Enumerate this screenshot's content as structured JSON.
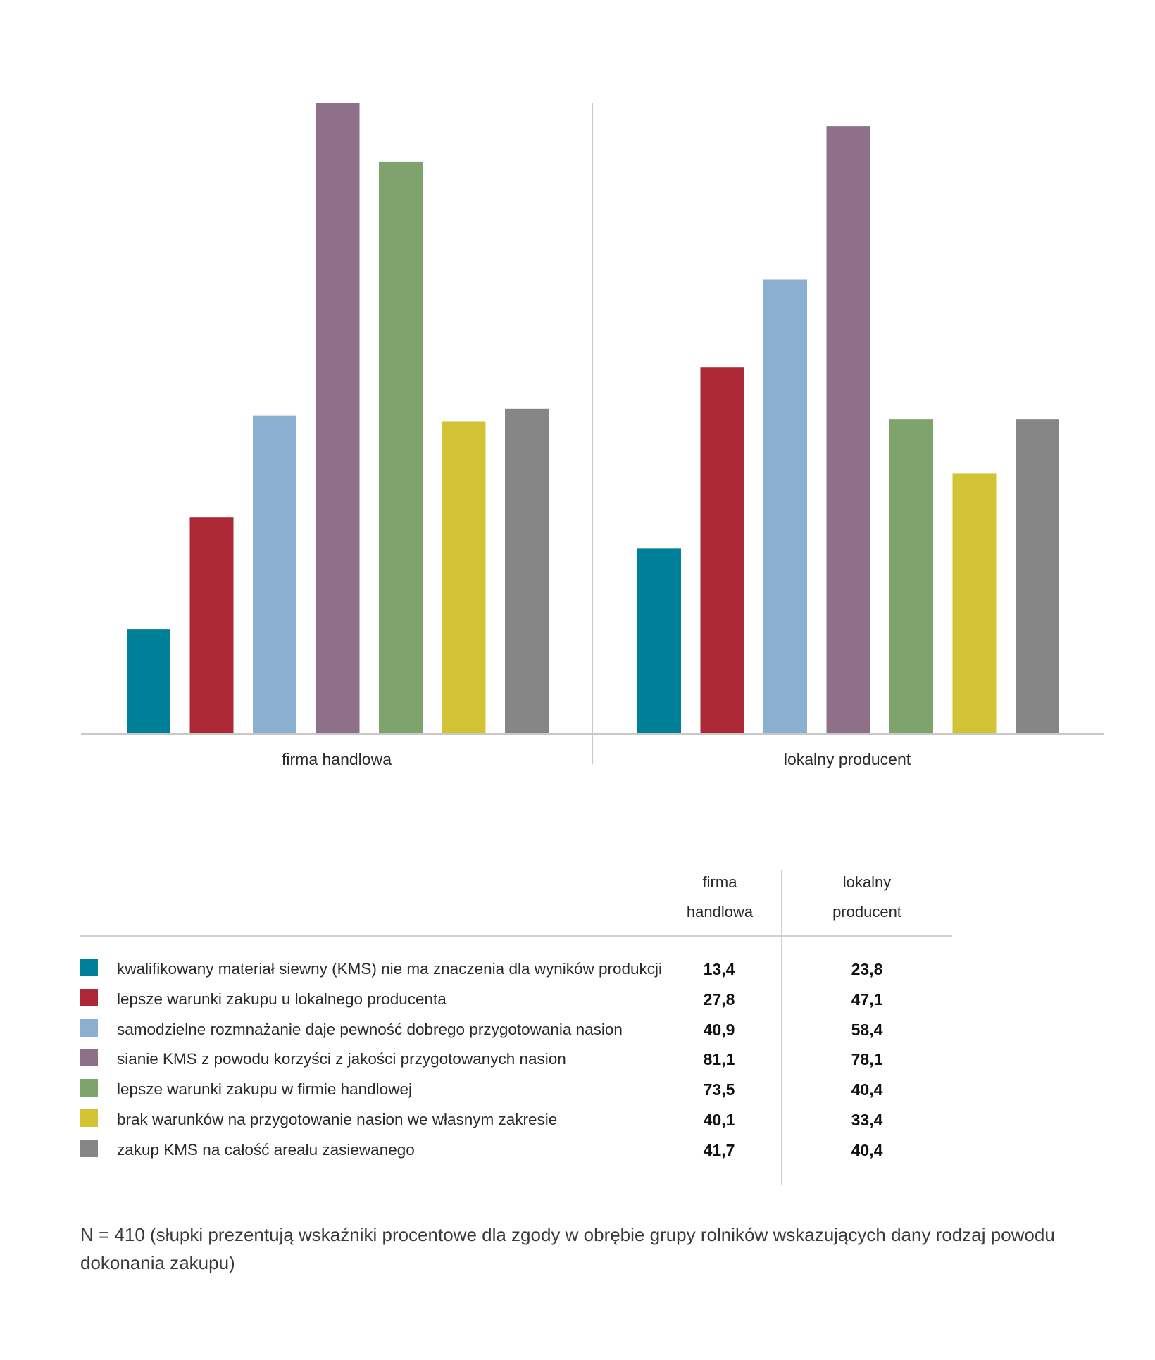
{
  "chart_data": {
    "type": "bar",
    "categories": [
      "firma handlowa",
      "lokalny producent"
    ],
    "series": [
      {
        "name": "kwalifikowany materiał siewny (KMS) nie ma znaczenia dla wyników produkcji",
        "color": "#007f99",
        "values": [
          13.4,
          23.8
        ]
      },
      {
        "name": "lepsze warunki zakupu u lokalnego producenta",
        "color": "#ab2834",
        "values": [
          27.8,
          47.1
        ]
      },
      {
        "name": "samodzielne rozmnażanie daje pewność dobrego przygotowania nasion",
        "color": "#8bafd0",
        "values": [
          40.9,
          58.4
        ]
      },
      {
        "name": "sianie KMS z powodu korzyści z jakości przygotowanych nasion",
        "color": "#8e7188",
        "values": [
          81.1,
          78.1
        ]
      },
      {
        "name": "lepsze warunki zakupu w firmie handlowej",
        "color": "#7ea36d",
        "values": [
          73.5,
          40.4
        ]
      },
      {
        "name": "brak warunków na przygotowanie nasion we własnym zakresie",
        "color": "#d2c335",
        "values": [
          40.1,
          33.4
        ]
      },
      {
        "name": "zakup KMS na całość areału zasiewanego",
        "color": "#868686",
        "values": [
          41.7,
          40.4
        ]
      }
    ],
    "ylim": [
      0,
      81.1
    ],
    "grid": false,
    "legend": "table-below"
  },
  "table": {
    "col1_line1": "firma",
    "col1_line2": "handlowa",
    "col2_line1": "lokalny",
    "col2_line2": "producent",
    "rows": [
      {
        "label": "kwalifikowany materiał siewny (KMS) nie ma znaczenia dla wyników produkcji",
        "v1": "13,4",
        "v2": "23,8"
      },
      {
        "label": "lepsze warunki zakupu u lokalnego producenta",
        "v1": "27,8",
        "v2": "47,1"
      },
      {
        "label": "samodzielne rozmnażanie daje pewność dobrego przygotowania nasion",
        "v1": "40,9",
        "v2": "58,4"
      },
      {
        "label": "sianie KMS z powodu korzyści z jakości przygotowanych nasion",
        "v1": "81,1",
        "v2": "78,1"
      },
      {
        "label": "lepsze warunki zakupu w firmie handlowej",
        "v1": "73,5",
        "v2": "40,4"
      },
      {
        "label": "brak warunków na przygotowanie nasion we własnym zakresie",
        "v1": "40,1",
        "v2": "33,4"
      },
      {
        "label": "zakup KMS na całość areału zasiewanego",
        "v1": "41,7",
        "v2": "40,4"
      }
    ]
  },
  "footnote": "N = 410 (słupki prezentują wskaźniki procentowe dla zgody w obrębie grupy rolników wskazujących dany rodzaj powodu dokonania zakupu)"
}
